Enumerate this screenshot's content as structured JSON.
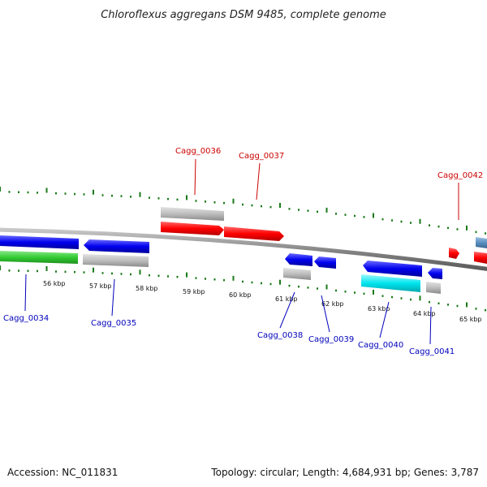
{
  "title": "Chloroflexus aggregans DSM 9485, complete genome",
  "footer": {
    "accession": "Accession: NC_011831",
    "summary": "Topology: circular; Length: 4,684,931 bp; Genes: 3,787"
  },
  "colors": {
    "backbone": "#888888",
    "tick": "#1a7a1a",
    "red": "#ff0000",
    "blue": "#0000ee",
    "gray": "#b8b8b8",
    "green": "#33cc33",
    "cyan": "#00e5ee",
    "steel": "#5a8fc0",
    "label_red": "#cc0000",
    "label_blue": "#0000bb"
  },
  "scale": {
    "ticks": [
      {
        "label": "56 kbp"
      },
      {
        "label": "57 kbp"
      },
      {
        "label": "58 kbp"
      },
      {
        "label": "59 kbp"
      },
      {
        "label": "60 kbp"
      },
      {
        "label": "61 kbp"
      },
      {
        "label": "62 kbp"
      },
      {
        "label": "63 kbp"
      },
      {
        "label": "64 kbp"
      },
      {
        "label": "65 kbp"
      }
    ]
  },
  "gene_labels": {
    "top": [
      {
        "name": "Cagg_0036"
      },
      {
        "name": "Cagg_0037"
      },
      {
        "name": "Cagg_0042"
      }
    ],
    "bottom": [
      {
        "name": "Cagg_0034"
      },
      {
        "name": "Cagg_0035"
      },
      {
        "name": "Cagg_0038"
      },
      {
        "name": "Cagg_0039"
      },
      {
        "name": "Cagg_0040"
      },
      {
        "name": "Cagg_0041"
      }
    ]
  }
}
